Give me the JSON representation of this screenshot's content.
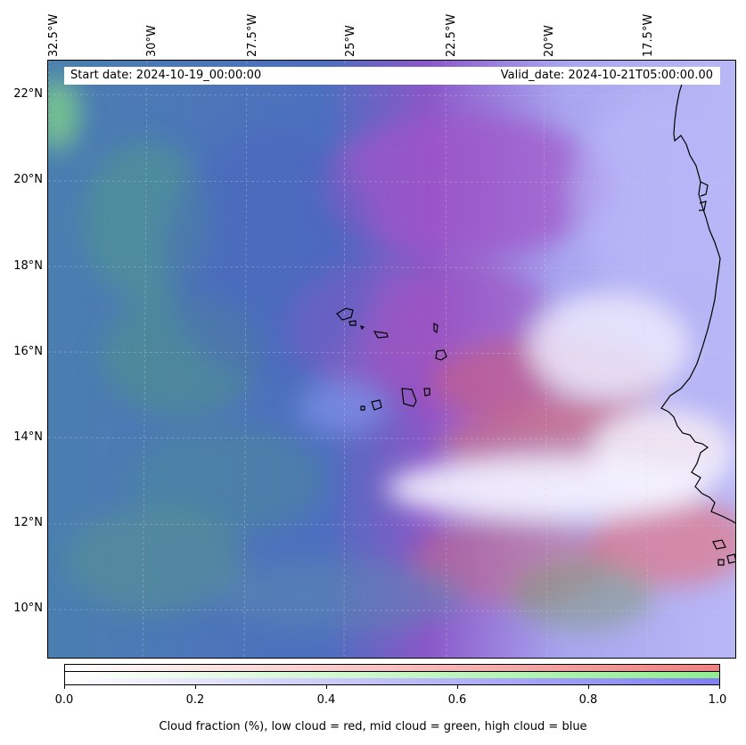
{
  "map": {
    "start_date": "Start date: 2024-10-19_00:00:00",
    "valid_date": "Valid_date: 2024-10-21T05:00:00.00",
    "lon_labels": [
      "32.5°W",
      "30°W",
      "27.5°W",
      "25°W",
      "22.5°W",
      "20°W",
      "17.5°W"
    ],
    "lat_labels": [
      "22°N",
      "20°N",
      "18°N",
      "16°N",
      "14°N",
      "12°N",
      "10°N"
    ],
    "colors": {
      "low": "#f08080",
      "mid": "#90ee90",
      "high": "#8080f0"
    }
  },
  "colorbar": {
    "ticks": [
      "0.0",
      "0.2",
      "0.4",
      "0.6",
      "0.8",
      "1.0"
    ],
    "title": "Cloud fraction (%), low cloud = red, mid cloud = green, high cloud = blue"
  }
}
